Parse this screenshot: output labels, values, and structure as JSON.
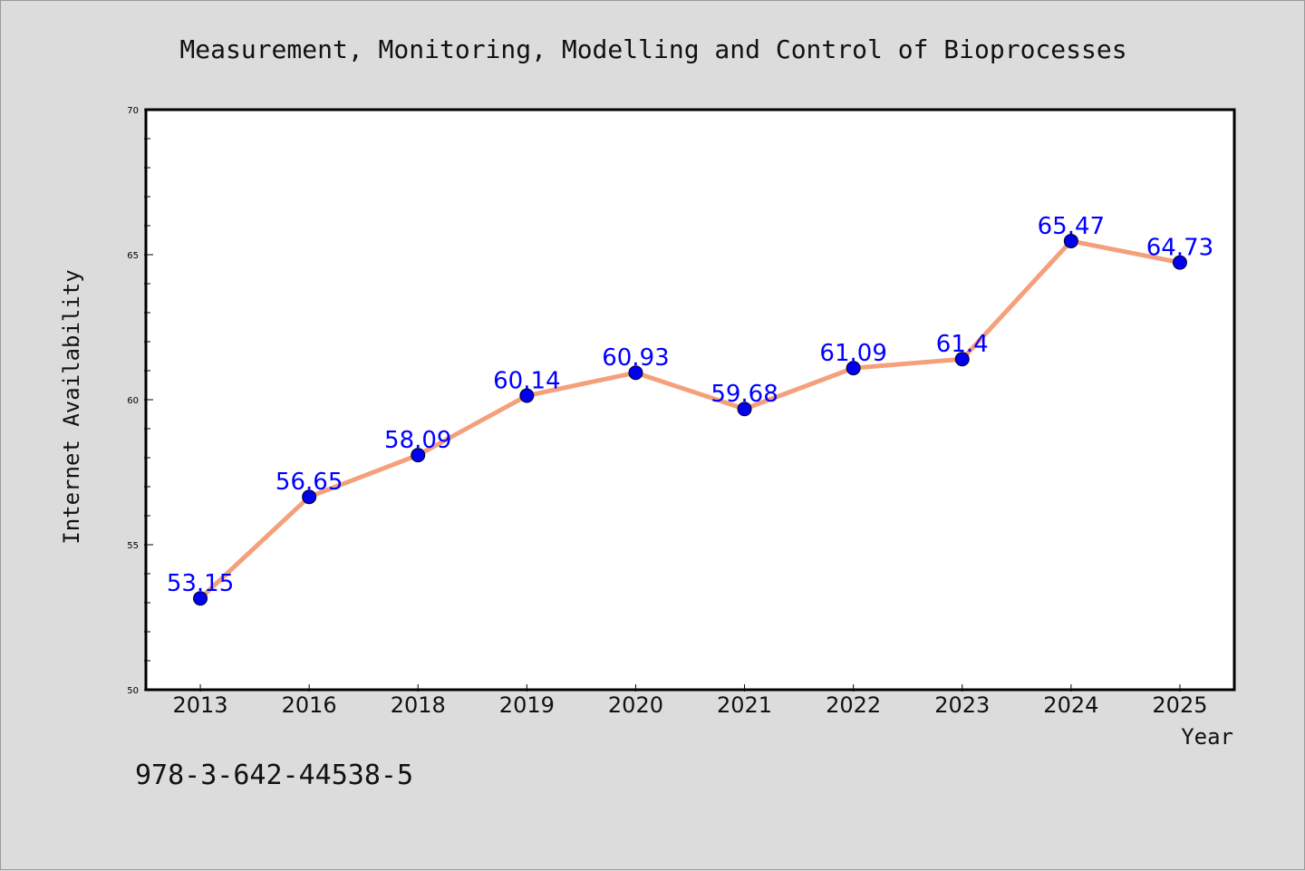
{
  "chart_data": {
    "type": "line",
    "title": "Measurement, Monitoring, Modelling and Control of Bioprocesses",
    "xlabel": "Year",
    "ylabel": "Internet Availability",
    "categories": [
      "2013",
      "2016",
      "2018",
      "2019",
      "2020",
      "2021",
      "2022",
      "2023",
      "2024",
      "2025"
    ],
    "series": [
      {
        "values": [
          53.15,
          56.65,
          58.09,
          60.14,
          60.93,
          59.68,
          61.09,
          61.4,
          65.47,
          64.73
        ],
        "value_labels": [
          "53.15",
          "56.65",
          "58.09",
          "60.14",
          "60.93",
          "59.68",
          "61.09",
          "61.4",
          "65.47",
          "64.73"
        ]
      }
    ],
    "ylim": [
      50,
      70
    ],
    "yticks": [
      "50",
      "55",
      "60",
      "65",
      "70"
    ],
    "grid": false,
    "colors": {
      "line": "#f4a07a",
      "marker": "#0000ee",
      "label": "#0000ff",
      "plot_bg": "#ffffff",
      "page_bg": "#dcdcdc"
    }
  },
  "footer": {
    "isbn": "978-3-642-44538-5"
  }
}
